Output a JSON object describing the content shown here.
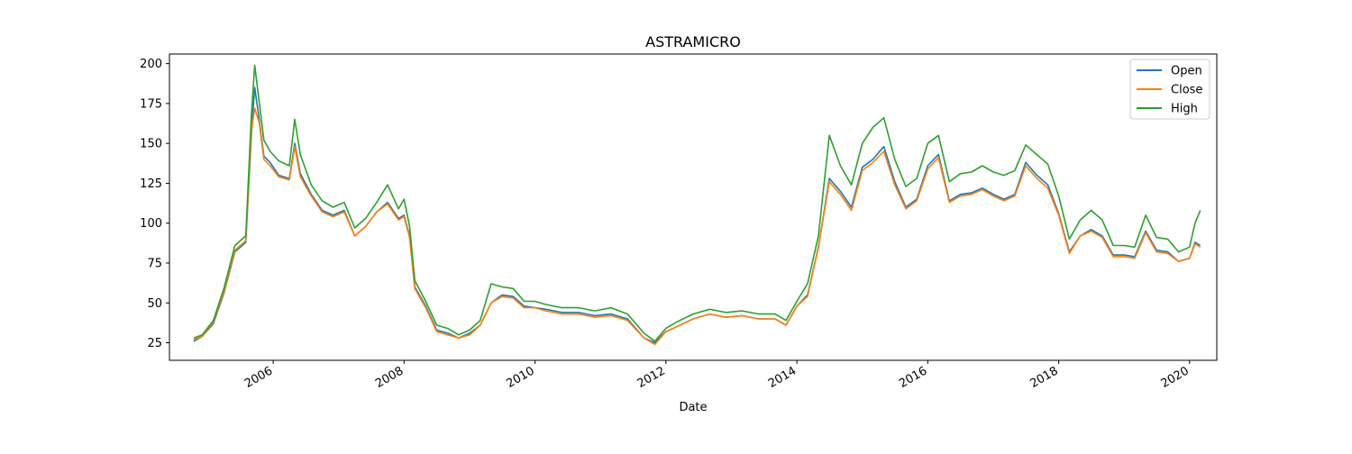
{
  "chart_data": {
    "type": "line",
    "title": "ASTRAMICRO",
    "xlabel": "Date",
    "ylabel": "",
    "xlim": [
      "2004-06-01",
      "2020-06-01"
    ],
    "ylim": [
      14,
      206
    ],
    "x_ticks": [
      "2006",
      "2008",
      "2010",
      "2012",
      "2014",
      "2016",
      "2018",
      "2020"
    ],
    "y_ticks": [
      25,
      50,
      75,
      100,
      125,
      150,
      175,
      200
    ],
    "legend_position": "top-right",
    "grid": false,
    "colors": {
      "Open": "#1f77b4",
      "Close": "#ff7f0e",
      "High": "#2ca02c"
    },
    "x": [
      "2004-10-15",
      "2004-12-01",
      "2005-02-01",
      "2005-04-01",
      "2005-06-01",
      "2005-08-01",
      "2005-09-01",
      "2005-09-20",
      "2005-10-15",
      "2005-11-10",
      "2005-12-15",
      "2006-02-01",
      "2006-04-01",
      "2006-05-01",
      "2006-06-01",
      "2006-08-01",
      "2006-10-01",
      "2006-12-01",
      "2007-02-01",
      "2007-04-01",
      "2007-06-01",
      "2007-08-01",
      "2007-10-01",
      "2007-12-01",
      "2008-01-01",
      "2008-02-01",
      "2008-03-01",
      "2008-05-01",
      "2008-07-01",
      "2008-09-01",
      "2008-11-01",
      "2009-01-01",
      "2009-03-01",
      "2009-05-01",
      "2009-07-01",
      "2009-09-01",
      "2009-11-01",
      "2010-01-01",
      "2010-03-01",
      "2010-06-01",
      "2010-09-01",
      "2010-12-01",
      "2011-03-01",
      "2011-06-01",
      "2011-09-01",
      "2011-11-01",
      "2012-01-01",
      "2012-03-01",
      "2012-06-01",
      "2012-09-01",
      "2012-12-01",
      "2013-03-01",
      "2013-06-01",
      "2013-09-01",
      "2013-11-01",
      "2014-01-01",
      "2014-03-01",
      "2014-05-01",
      "2014-07-01",
      "2014-09-01",
      "2014-11-01",
      "2015-01-01",
      "2015-03-01",
      "2015-05-01",
      "2015-07-01",
      "2015-09-01",
      "2015-11-01",
      "2016-01-01",
      "2016-03-01",
      "2016-05-01",
      "2016-07-01",
      "2016-09-01",
      "2016-11-01",
      "2017-01-01",
      "2017-03-01",
      "2017-05-01",
      "2017-07-01",
      "2017-09-01",
      "2017-11-01",
      "2018-01-01",
      "2018-03-01",
      "2018-05-01",
      "2018-07-01",
      "2018-09-01",
      "2018-11-01",
      "2019-01-01",
      "2019-03-01",
      "2019-05-01",
      "2019-07-01",
      "2019-09-01",
      "2019-11-01",
      "2020-01-01",
      "2020-02-01",
      "2020-03-01"
    ],
    "series": [
      {
        "name": "Open",
        "values": [
          26,
          29,
          37,
          56,
          82,
          88,
          155,
          185,
          165,
          142,
          138,
          130,
          128,
          150,
          131,
          118,
          108,
          105,
          108,
          92,
          98,
          107,
          113,
          103,
          105,
          92,
          60,
          48,
          33,
          31,
          28,
          31,
          36,
          50,
          55,
          54,
          48,
          47,
          46,
          44,
          44,
          42,
          43,
          40,
          28,
          25,
          32,
          35,
          40,
          43,
          41,
          42,
          40,
          40,
          36,
          48,
          55,
          85,
          128,
          120,
          110,
          135,
          140,
          148,
          126,
          110,
          115,
          136,
          143,
          114,
          118,
          119,
          122,
          118,
          115,
          118,
          138,
          130,
          124,
          106,
          82,
          92,
          96,
          92,
          80,
          80,
          79,
          95,
          83,
          82,
          76,
          78,
          88,
          86
        ]
      },
      {
        "name": "Close",
        "values": [
          27,
          29,
          38,
          57,
          83,
          89,
          158,
          172,
          163,
          140,
          136,
          129,
          127,
          148,
          129,
          117,
          107,
          104,
          107,
          92,
          98,
          107,
          112,
          102,
          104,
          91,
          59,
          47,
          32,
          30,
          28,
          30,
          36,
          50,
          54,
          53,
          47,
          47,
          45,
          43,
          43,
          41,
          42,
          39,
          28,
          24,
          32,
          35,
          40,
          43,
          41,
          42,
          40,
          40,
          36,
          48,
          54,
          85,
          126,
          118,
          108,
          133,
          138,
          145,
          124,
          109,
          114,
          134,
          141,
          113,
          117,
          118,
          121,
          117,
          114,
          117,
          136,
          128,
          122,
          105,
          81,
          92,
          95,
          91,
          79,
          79,
          78,
          94,
          82,
          81,
          76,
          78,
          87,
          85
        ]
      },
      {
        "name": "High",
        "values": [
          28,
          30,
          39,
          59,
          86,
          92,
          168,
          199,
          176,
          152,
          145,
          139,
          136,
          165,
          143,
          124,
          114,
          110,
          113,
          97,
          103,
          113,
          124,
          109,
          115,
          98,
          64,
          51,
          36,
          34,
          30,
          33,
          39,
          62,
          60,
          59,
          51,
          51,
          49,
          47,
          47,
          45,
          47,
          43,
          31,
          26,
          34,
          38,
          43,
          46,
          44,
          45,
          43,
          43,
          39,
          51,
          62,
          92,
          155,
          136,
          124,
          150,
          160,
          166,
          140,
          123,
          128,
          150,
          155,
          126,
          131,
          132,
          136,
          132,
          130,
          133,
          149,
          143,
          137,
          117,
          90,
          102,
          108,
          102,
          86,
          86,
          85,
          105,
          91,
          90,
          82,
          85,
          100,
          108
        ]
      }
    ]
  }
}
